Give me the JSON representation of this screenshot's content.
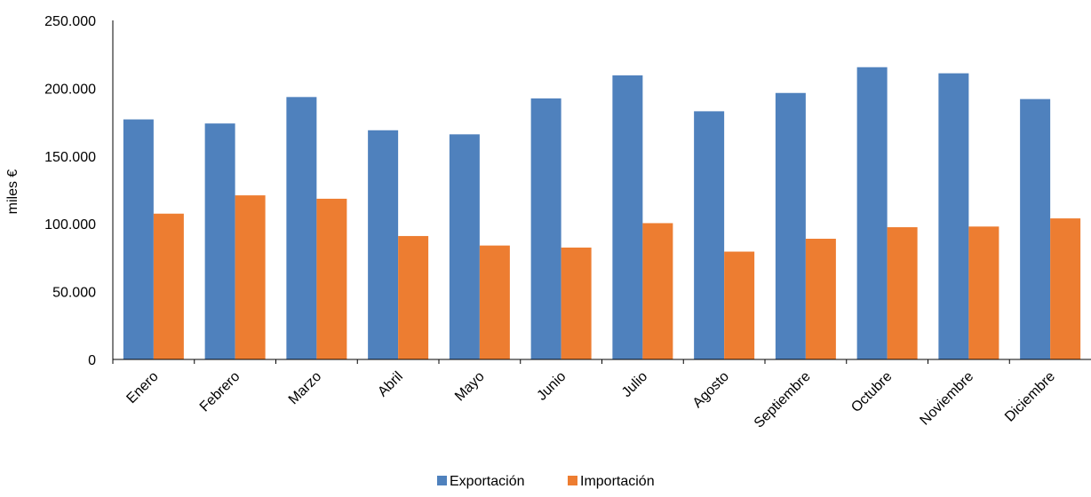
{
  "chart_data": {
    "type": "bar",
    "title": "",
    "xlabel": "",
    "ylabel": "miles €",
    "ylim": [
      0,
      250000
    ],
    "yticks": [
      0,
      50000,
      100000,
      150000,
      200000,
      250000
    ],
    "ytick_labels": [
      "0",
      "50.000",
      "100.000",
      "150.000",
      "200.000",
      "250.000"
    ],
    "categories": [
      "Enero",
      "Febrero",
      "Marzo",
      "Abril",
      "Mayo",
      "Junio",
      "Julio",
      "Agosto",
      "Septiembre",
      "Octubre",
      "Noviembre",
      "Diciembre"
    ],
    "series": [
      {
        "name": "Exportación",
        "color": "#4F81BD",
        "values": [
          177000,
          174000,
          193500,
          169000,
          166000,
          192500,
          209500,
          183000,
          196500,
          215500,
          211000,
          192000
        ]
      },
      {
        "name": "Importación",
        "color": "#ED7D31",
        "values": [
          107500,
          121000,
          118500,
          91000,
          84000,
          82500,
          100500,
          79500,
          89000,
          97500,
          98000,
          104000
        ]
      }
    ],
    "grid": true,
    "legend_position": "bottom"
  }
}
